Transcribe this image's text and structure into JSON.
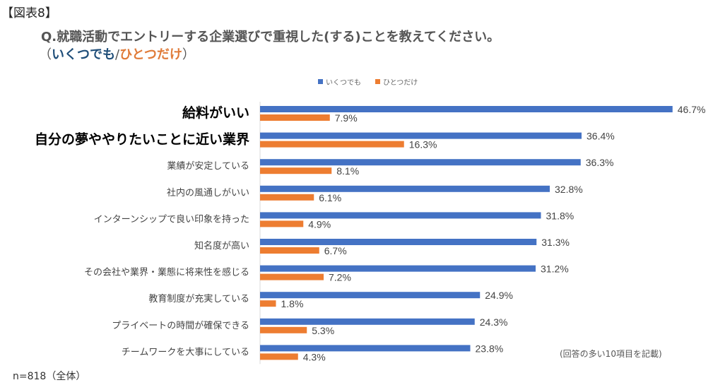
{
  "figure_label": "【図表8】",
  "question": "Q.就職活動でエントリーする企業選びで重視した(する)ことを教えてください。",
  "subtitle": {
    "open": "（",
    "series1": "いくつでも",
    "sep": "/",
    "series2": "ひとつだけ",
    "close": "）"
  },
  "note": "(回答の多い10項目を記載)",
  "sample": "n=818（全体）",
  "colors": {
    "series1": "#4472C4",
    "series2": "#ED7D31",
    "subtitle_series1": "#1F4E79",
    "subtitle_series2": "#E07B39",
    "axis": "#d9d9d9"
  },
  "chart_data": {
    "type": "bar",
    "orientation": "horizontal",
    "title": "Q.就職活動でエントリーする企業選びで重視した(する)ことを教えてください。",
    "xlabel": "",
    "ylabel": "",
    "xlim": [
      0,
      50
    ],
    "unit": "%",
    "legend": "top-center",
    "grid": false,
    "categories": [
      "給料がいい",
      "自分の夢ややりたいことに近い業界",
      "業績が安定している",
      "社内の風通しがいい",
      "インターンシップで良い印象を持った",
      "知名度が高い",
      "その会社や業界・業態に将来性を感じる",
      "教育制度が充実している",
      "プライベートの時間が確保できる",
      "チームワークを大事にしている"
    ],
    "emphasized_categories": [
      0,
      1
    ],
    "series": [
      {
        "name": "いくつでも",
        "values": [
          46.7,
          36.4,
          36.3,
          32.8,
          31.8,
          31.3,
          31.2,
          24.9,
          24.3,
          23.8
        ]
      },
      {
        "name": "ひとつだけ",
        "values": [
          7.9,
          16.3,
          8.1,
          6.1,
          4.9,
          6.7,
          7.2,
          1.8,
          5.3,
          4.3
        ]
      }
    ]
  }
}
